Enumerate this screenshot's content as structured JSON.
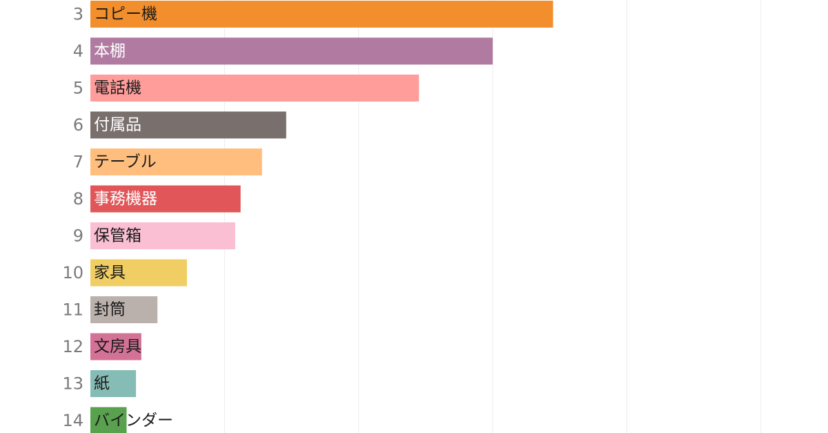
{
  "chart_data": {
    "type": "bar",
    "orientation": "horizontal",
    "ranks": [
      "3",
      "4",
      "5",
      "6",
      "7",
      "8",
      "9",
      "10",
      "11",
      "12",
      "13",
      "14"
    ],
    "categories": [
      "コピー機",
      "本棚",
      "電話機",
      "付属品",
      "テーブル",
      "事務機器",
      "保管箱",
      "家具",
      "封筒",
      "文房具",
      "紙",
      "バインダー"
    ],
    "values": [
      3.45,
      3.0,
      2.45,
      1.46,
      1.28,
      1.12,
      1.08,
      0.72,
      0.5,
      0.38,
      0.34,
      0.27
    ],
    "xlim": [
      0,
      5.5
    ],
    "grid": true,
    "colors": [
      "#f28e2b",
      "#b07aa1",
      "#ff9d9a",
      "#79706e",
      "#ffbe7d",
      "#e15759",
      "#fabfd2",
      "#f1ce63",
      "#bab0ac",
      "#d37295",
      "#86bcb6",
      "#59a14f"
    ],
    "label_colors": [
      "#1a1a1a",
      "#ffffff",
      "#1a1a1a",
      "#ffffff",
      "#1a1a1a",
      "#ffffff",
      "#1a1a1a",
      "#1a1a1a",
      "#1a1a1a",
      "#1a1a1a",
      "#1a1a1a",
      "#1a1a1a"
    ]
  }
}
